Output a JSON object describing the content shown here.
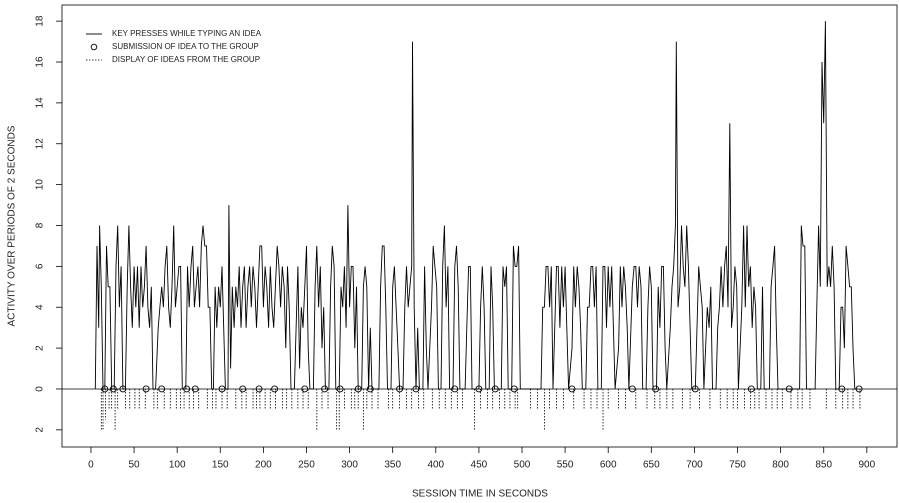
{
  "chart_data": {
    "type": "line",
    "xlabel": "SESSION TIME IN SECONDS",
    "ylabel": "ACTIVITY OVER PERIODS OF 2 SECONDS",
    "xlim": [
      -33.6,
      935
    ],
    "ylim": [
      -2.84,
      18.79
    ],
    "xticks": [
      0,
      50,
      100,
      150,
      200,
      250,
      300,
      350,
      400,
      450,
      500,
      550,
      600,
      650,
      700,
      750,
      800,
      850,
      900
    ],
    "yticks": [
      {
        "value": -2,
        "label": "2"
      },
      0,
      2,
      4,
      6,
      8,
      10,
      12,
      14,
      16,
      18
    ],
    "legend": "top-left",
    "series": [
      {
        "name": "KEY PRESSES WHILE TYPING AN IDEA",
        "style": "line",
        "color": "#000000",
        "x": [
          5,
          7,
          9,
          10,
          12,
          14,
          16,
          18,
          20,
          22,
          24,
          27,
          29,
          31,
          33,
          35,
          37,
          40,
          42,
          44,
          46,
          48,
          50,
          52,
          54,
          56,
          58,
          60,
          62,
          64,
          66,
          68,
          70,
          72,
          75,
          78,
          80,
          82,
          84,
          86,
          88,
          90,
          92,
          94,
          96,
          98,
          100,
          102,
          104,
          106,
          110,
          112,
          114,
          116,
          118,
          120,
          122,
          124,
          126,
          128,
          130,
          132,
          134,
          136,
          138,
          140,
          142,
          144,
          146,
          148,
          150,
          152,
          154,
          156,
          159,
          160,
          162,
          164,
          166,
          168,
          170,
          172,
          174,
          176,
          178,
          180,
          182,
          184,
          186,
          188,
          190,
          192,
          194,
          196,
          198,
          200,
          202,
          204,
          206,
          208,
          210,
          212,
          214,
          216,
          218,
          220,
          222,
          224,
          226,
          228,
          230,
          232,
          236,
          238,
          240,
          242,
          244,
          246,
          248,
          250,
          252,
          254,
          258,
          260,
          262,
          264,
          266,
          268,
          270,
          272,
          276,
          278,
          280,
          282,
          284,
          288,
          290,
          292,
          294,
          296,
          298,
          300,
          302,
          304,
          306,
          308,
          310,
          314,
          316,
          318,
          320,
          322,
          324,
          326,
          334,
          336,
          338,
          340,
          342,
          344,
          348,
          350,
          352,
          354,
          356,
          358,
          362,
          364,
          366,
          368,
          370,
          372,
          373,
          375,
          377,
          379,
          381,
          385,
          387,
          389,
          391,
          395,
          397,
          399,
          401,
          403,
          406,
          408,
          410,
          412,
          414,
          416,
          420,
          422,
          424,
          426,
          428,
          434,
          436,
          438,
          440,
          442,
          450,
          452,
          454,
          456,
          458,
          462,
          464,
          466,
          468,
          476,
          478,
          480,
          482,
          484,
          488,
          490,
          492,
          494,
          496,
          498,
          522,
          524,
          526,
          528,
          530,
          532,
          534,
          536,
          540,
          542,
          544,
          546,
          548,
          550,
          552,
          554,
          558,
          560,
          562,
          564,
          566,
          568,
          570,
          574,
          576,
          578,
          580,
          582,
          584,
          586,
          588,
          592,
          594,
          596,
          598,
          600,
          602,
          604,
          606,
          608,
          612,
          614,
          616,
          618,
          620,
          622,
          624,
          628,
          630,
          632,
          634,
          636,
          638,
          640,
          644,
          646,
          648,
          650,
          652,
          656,
          658,
          660,
          662,
          664,
          666,
          668,
          672,
          674,
          676,
          678,
          679,
          681,
          683,
          685,
          687,
          689,
          691,
          693,
          695,
          697,
          701,
          703,
          705,
          707,
          709,
          711,
          715,
          717,
          719,
          721,
          725,
          727,
          729,
          731,
          733,
          735,
          737,
          739,
          741,
          743,
          745,
          747,
          749,
          751,
          755,
          757,
          759,
          761,
          763,
          765,
          767,
          769,
          771,
          773,
          777,
          779,
          781,
          787,
          789,
          791,
          793,
          795,
          797,
          822,
          824,
          826,
          828,
          830,
          840,
          842,
          844,
          846,
          848,
          850,
          852,
          854,
          856,
          858,
          860,
          862,
          864,
          868,
          870,
          872,
          874,
          876,
          878,
          880,
          882,
          884,
          886,
          890
        ],
        "values": [
          0,
          7,
          3,
          8,
          5,
          0,
          0,
          7,
          5,
          5,
          0,
          0,
          6,
          8,
          4,
          6,
          0,
          0,
          5,
          8,
          5,
          3,
          6,
          4,
          6,
          3,
          6,
          4,
          5,
          7,
          4,
          3,
          5,
          0,
          0,
          3,
          4,
          5,
          4,
          6,
          7,
          4,
          3,
          5,
          8,
          4,
          5,
          6,
          6,
          0,
          0,
          6,
          4,
          6,
          7,
          4,
          5,
          6,
          4,
          7,
          8,
          7,
          7,
          4,
          4,
          0,
          0,
          5,
          3,
          5,
          4,
          6,
          3,
          0,
          0,
          9,
          1,
          5,
          3,
          5,
          4,
          6,
          3,
          5,
          6,
          3,
          5,
          6,
          4,
          6,
          5,
          3,
          5,
          7,
          7,
          4,
          6,
          5,
          3,
          6,
          4,
          3,
          5,
          7,
          6,
          4,
          6,
          5,
          2,
          6,
          4,
          0,
          0,
          3,
          6,
          1,
          4,
          3,
          5,
          7,
          2,
          0,
          0,
          5,
          7,
          4,
          6,
          2,
          4,
          0,
          0,
          5,
          7,
          6,
          0,
          0,
          5,
          4,
          6,
          3,
          9,
          4,
          6,
          6,
          2,
          5,
          0,
          0,
          5,
          6,
          5,
          0,
          3,
          0,
          0,
          5,
          7,
          7,
          4,
          0,
          0,
          5,
          6,
          4,
          2,
          0,
          0,
          4,
          6,
          4,
          5,
          6,
          17,
          4,
          0,
          3,
          0,
          0,
          6,
          2,
          0,
          4,
          7,
          6,
          5,
          0,
          0,
          6,
          8,
          4,
          6,
          0,
          0,
          6,
          7,
          5,
          0,
          0,
          3,
          6,
          6,
          0,
          0,
          4,
          6,
          4,
          0,
          0,
          6,
          4,
          0,
          0,
          6,
          5,
          6,
          0,
          0,
          7,
          6,
          6,
          7,
          0,
          0,
          4,
          4,
          6,
          6,
          4,
          6,
          0,
          6,
          6,
          3,
          6,
          4,
          6,
          3,
          0,
          2,
          6,
          4,
          6,
          5,
          3,
          0,
          0,
          4,
          4,
          6,
          6,
          4,
          6,
          0,
          0,
          6,
          6,
          3,
          6,
          4,
          6,
          3,
          0,
          2,
          6,
          4,
          6,
          5,
          3,
          0,
          5,
          6,
          6,
          4,
          6,
          5,
          0,
          0,
          4,
          6,
          5,
          0,
          0,
          5,
          3,
          6,
          6,
          2,
          0,
          3,
          5,
          6,
          8,
          17,
          4,
          5,
          8,
          6,
          5,
          8,
          6,
          3,
          0,
          0,
          3,
          6,
          5,
          4,
          0,
          4,
          3,
          5,
          0,
          0,
          3,
          4,
          6,
          4,
          6,
          7,
          4,
          13,
          3,
          4,
          6,
          5,
          0,
          4,
          8,
          4,
          8,
          5,
          6,
          3,
          5,
          4,
          0,
          0,
          5,
          0,
          0,
          5,
          6,
          7,
          3,
          0,
          0,
          8,
          7,
          7,
          0,
          0,
          4,
          8,
          5,
          16,
          13,
          18,
          5,
          6,
          5,
          7,
          5,
          0,
          0,
          4,
          4,
          2,
          7,
          6,
          5,
          5,
          2,
          0,
          0
        ]
      },
      {
        "name": "SUBMISSION OF IDEA TO THE GROUP",
        "style": "circle",
        "color": "#000000",
        "x": [
          16,
          26,
          37,
          64,
          82,
          111,
          121,
          152,
          176,
          195,
          213,
          248,
          271,
          289,
          310,
          324,
          358,
          377,
          422,
          450,
          469,
          491,
          558,
          628,
          655,
          701,
          766,
          810,
          871,
          891
        ],
        "values": [
          0,
          0,
          0,
          0,
          0,
          0,
          0,
          0,
          0,
          0,
          0,
          0,
          0,
          0,
          0,
          0,
          0,
          0,
          0,
          0,
          0,
          0,
          0,
          0,
          0,
          0,
          0,
          0,
          0,
          0
        ]
      },
      {
        "name": "DISPLAY OF IDEAS FROM THE GROUP",
        "style": "dotted",
        "color": "#000000",
        "x": [
          12,
          14,
          17,
          21,
          24,
          28,
          31,
          40,
          45,
          51,
          56,
          63,
          73,
          77,
          85,
          92,
          99,
          104,
          108,
          114,
          119,
          125,
          135,
          141,
          145,
          152,
          158,
          168,
          175,
          180,
          188,
          192,
          196,
          202,
          208,
          214,
          222,
          227,
          233,
          240,
          246,
          252,
          262,
          268,
          275,
          285,
          288,
          294,
          302,
          306,
          310,
          316,
          320,
          326,
          333,
          345,
          350,
          358,
          366,
          372,
          380,
          386,
          396,
          404,
          411,
          418,
          425,
          431,
          445,
          452,
          460,
          466,
          474,
          480,
          486,
          492,
          495,
          510,
          518,
          526,
          532,
          540,
          548,
          560,
          572,
          580,
          587,
          594,
          600,
          612,
          620,
          632,
          645,
          654,
          660,
          668,
          675,
          686,
          695,
          706,
          718,
          730,
          738,
          745,
          750,
          758,
          765,
          770,
          775,
          783,
          790,
          796,
          802,
          812,
          820,
          825,
          834,
          853,
          864,
          872,
          878,
          884,
          892
        ],
        "values": [
          -2,
          -2,
          -1.5,
          -1,
          -1,
          -2,
          -1,
          -1,
          -1,
          -1,
          -1,
          -1,
          -1,
          -1,
          -1,
          -1,
          -1,
          -1,
          -1,
          -1,
          -1,
          -1,
          -1,
          -1,
          -1,
          -1,
          -1,
          -1,
          -1,
          -1,
          -1,
          -1,
          -1,
          -1,
          -1,
          -1,
          -1,
          -1,
          -1,
          -1,
          -1,
          -1,
          -2,
          -1,
          -1,
          -2,
          -2,
          -1,
          -1,
          -1,
          -1,
          -2,
          -1,
          -1,
          -1,
          -1,
          -1,
          -1,
          -1,
          -1,
          -1,
          -1,
          -1,
          -1,
          -1,
          -1,
          -1,
          -1,
          -2,
          -1,
          -1,
          -1,
          -1,
          -1,
          -1,
          -1,
          -1,
          -1,
          -1,
          -2,
          -1,
          -1,
          -1,
          -1,
          -1,
          -1,
          -1,
          -2,
          -1,
          -1,
          -1,
          -1,
          -1,
          -1,
          -1,
          -1,
          -1,
          -1,
          -1,
          -1,
          -1,
          -1,
          -1,
          -1,
          -1,
          -1,
          -1,
          -1,
          -1,
          -1,
          -1,
          -1,
          -1,
          -1,
          -1,
          -1,
          -1,
          -1,
          -1,
          -1,
          -1,
          -1,
          -1
        ]
      }
    ]
  }
}
